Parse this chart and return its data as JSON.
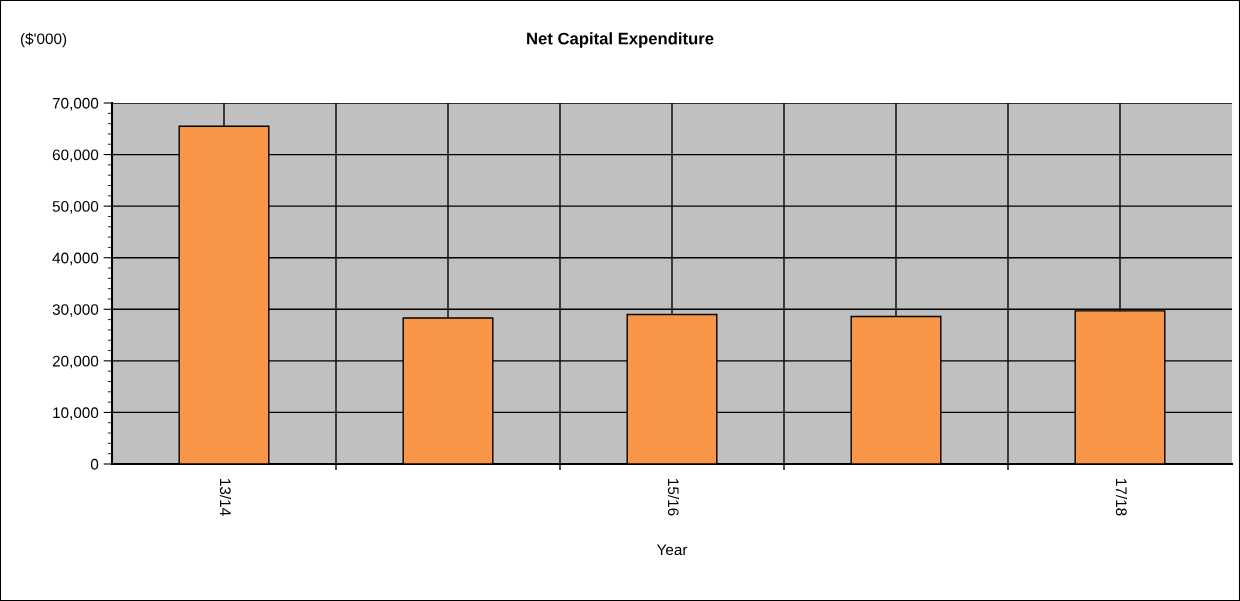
{
  "chart_data": {
    "type": "bar",
    "title": "Net Capital Expenditure",
    "ylabel": "($'000)",
    "xlabel": "Year",
    "categories": [
      "13/14",
      null,
      "15/16",
      null,
      "17/18"
    ],
    "values": [
      65500,
      28300,
      29000,
      28600,
      29700
    ],
    "color": "#f79646",
    "ylim": [
      0,
      70000
    ],
    "yticks": [
      {
        "value": 0,
        "label": "0"
      },
      {
        "value": 10000,
        "label": "10,000"
      },
      {
        "value": 20000,
        "label": "20,000"
      },
      {
        "value": 30000,
        "label": "30,000"
      },
      {
        "value": 40000,
        "label": "40,000"
      },
      {
        "value": 50000,
        "label": "50,000"
      },
      {
        "value": 60000,
        "label": "60,000"
      },
      {
        "value": 70000,
        "label": "70,000"
      }
    ],
    "grid": true
  }
}
